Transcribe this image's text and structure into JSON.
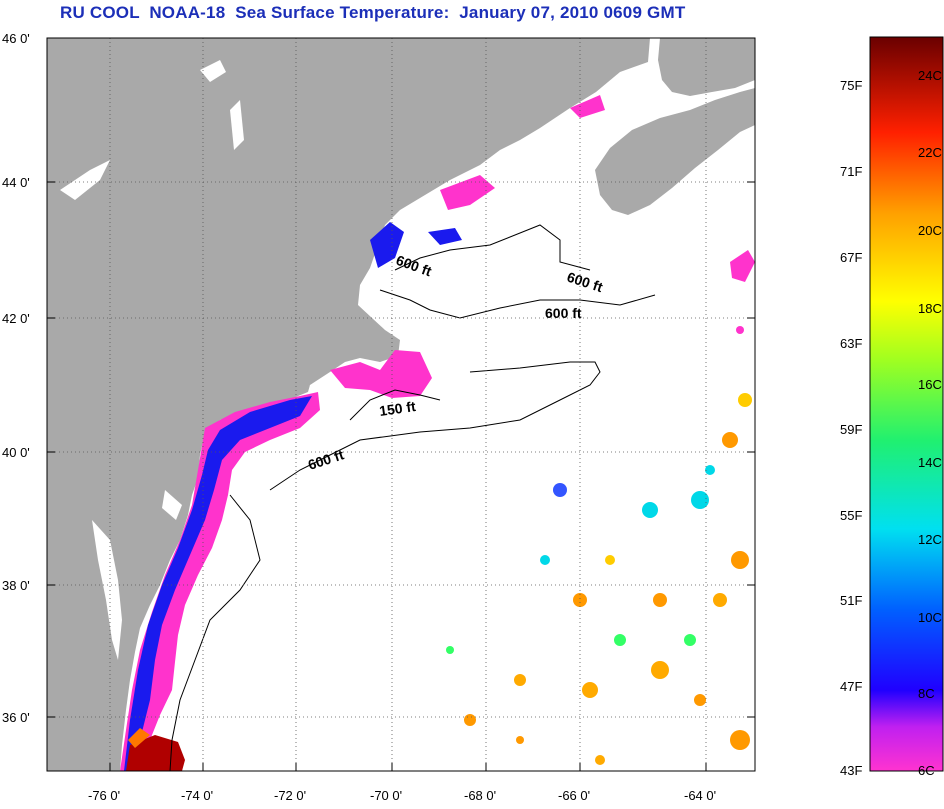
{
  "title": "RU COOL  NOAA-18  Sea Surface Temperature:  January 07, 2010 0609 GMT",
  "lat_ticks": [
    "46 0'",
    "44 0'",
    "42 0'",
    "40 0'",
    "38 0'",
    "36 0'"
  ],
  "lon_ticks": [
    "-76 0'",
    "-74 0'",
    "-72 0'",
    "-70 0'",
    "-68 0'",
    "-66 0'",
    "-64 0'"
  ],
  "contours": [
    {
      "label": "600 ft"
    },
    {
      "label": "600 ft"
    },
    {
      "label": "600 ft"
    },
    {
      "label": "150 ft"
    },
    {
      "label": "600 ft"
    }
  ],
  "colorbar": {
    "fahrenheit": [
      "75F",
      "71F",
      "67F",
      "63F",
      "59F",
      "55F",
      "51F",
      "47F",
      "43F"
    ],
    "celsius": [
      "24C",
      "22C",
      "20C",
      "18C",
      "16C",
      "14C",
      "12C",
      "10C",
      "8C",
      "6C"
    ]
  },
  "colors": {
    "title": "#1c2fb8",
    "land": "#a9a9a9",
    "water": "#ffffff",
    "cold": "#ff33cc",
    "cool": "#1a1aee",
    "warm": "#ff9900"
  }
}
